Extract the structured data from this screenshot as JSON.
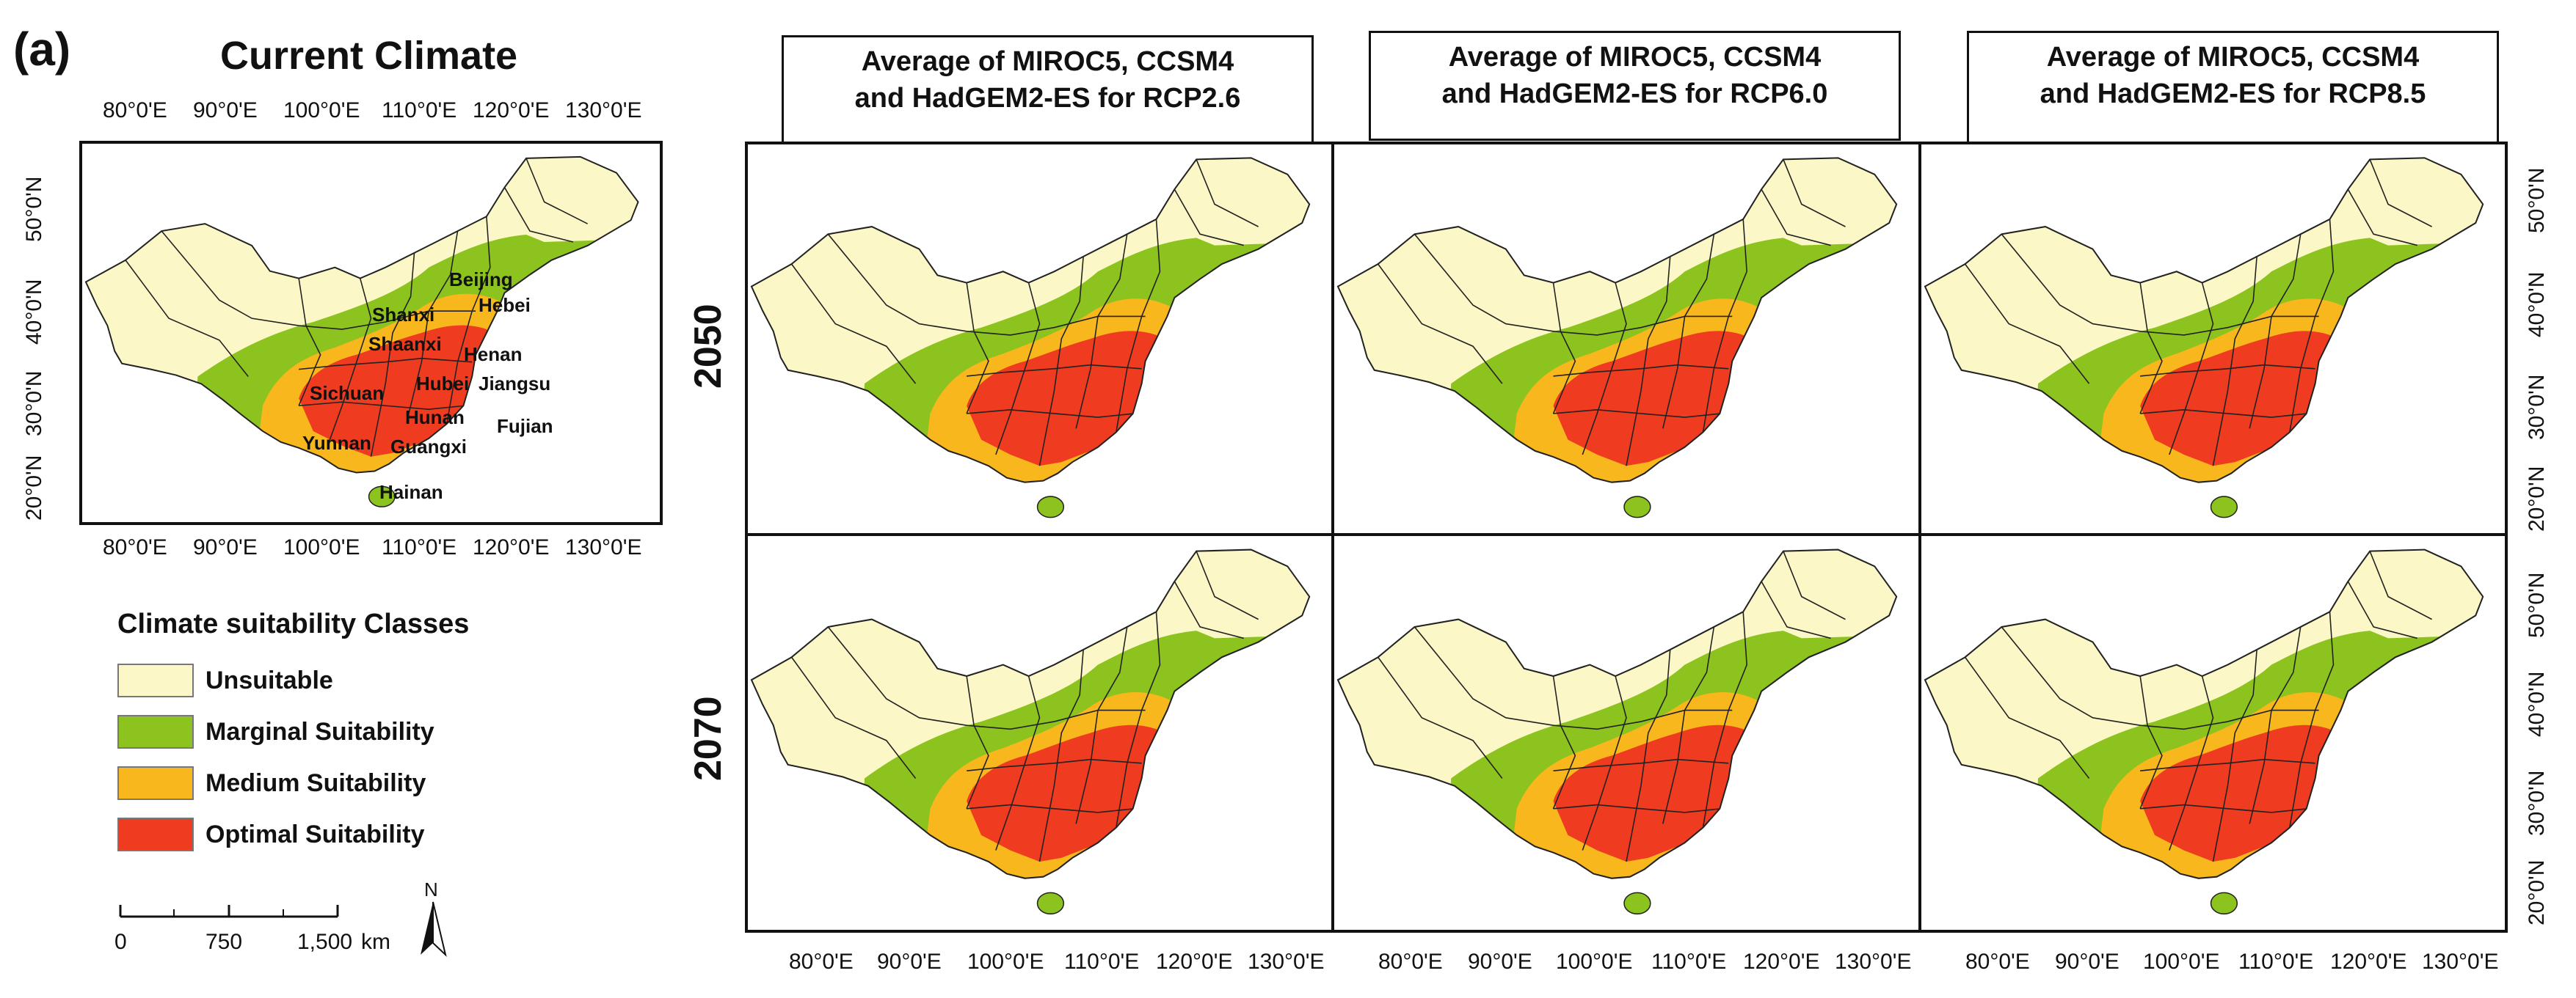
{
  "panel_label": "(a)",
  "current_title": "Current Climate",
  "lon_ticks": [
    "80°0'E",
    "90°0'E",
    "100°0'E",
    "110°0'E",
    "120°0'E",
    "130°0'E"
  ],
  "lat_ticks": [
    "20°0'N",
    "30°0'N",
    "40°0'N",
    "50°0'N"
  ],
  "scenario_titles": [
    {
      "line1": "Average of MIROC5, CCSM4",
      "line2": "and HadGEM2-ES for RCP2.6"
    },
    {
      "line1": "Average of MIROC5, CCSM4",
      "line2": "and HadGEM2-ES for RCP6.0"
    },
    {
      "line1": "Average of MIROC5, CCSM4",
      "line2": "and HadGEM2-ES for RCP8.5"
    }
  ],
  "years": [
    "2050",
    "2070"
  ],
  "provinces": [
    "Beijing",
    "Hebei",
    "Shanxi",
    "Shaanxi",
    "Henan",
    "Sichuan",
    "Hubei",
    "Jiangsu",
    "Hunan",
    "Fujian",
    "Yunnan",
    "Guangxi",
    "Hainan"
  ],
  "legend": {
    "title": "Climate suitability Classes",
    "items": [
      {
        "label": "Unsuitable",
        "color": "#fbf7c6"
      },
      {
        "label": "Marginal Suitability",
        "color": "#8cc31e"
      },
      {
        "label": "Medium Suitability",
        "color": "#f8b71c"
      },
      {
        "label": "Optimal Suitability",
        "color": "#ef3b1f"
      }
    ]
  },
  "scale_bar": {
    "labels": [
      "0",
      "750",
      "1,500"
    ],
    "unit": "km",
    "north": "N"
  }
}
